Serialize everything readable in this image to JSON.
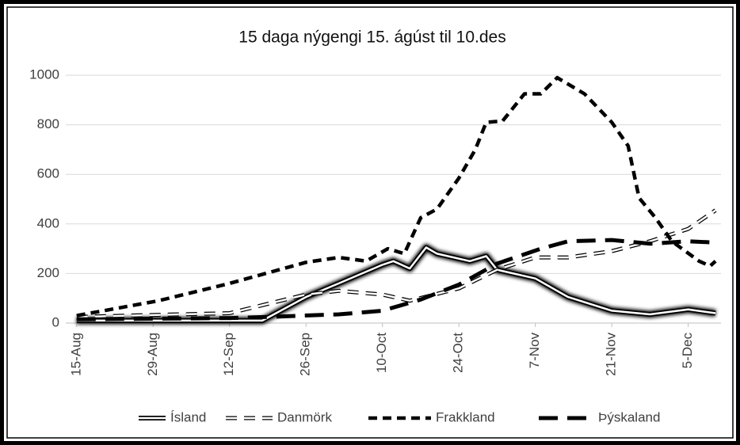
{
  "chart_data": {
    "type": "line",
    "title": "15 daga nýgengi 15. ágúst til 10.des",
    "xlim": [
      -2,
      118
    ],
    "ylim": [
      0,
      1000
    ],
    "grid": true,
    "legend": "bottom",
    "xticks": [
      {
        "value": 0,
        "label": "15-Aug"
      },
      {
        "value": 14,
        "label": "29-Aug"
      },
      {
        "value": 28,
        "label": "12-Sep"
      },
      {
        "value": 42,
        "label": "26-Sep"
      },
      {
        "value": 56,
        "label": "10-Oct"
      },
      {
        "value": 70,
        "label": "24-Oct"
      },
      {
        "value": 84,
        "label": "7-Nov"
      },
      {
        "value": 98,
        "label": "21-Nov"
      },
      {
        "value": 112,
        "label": "5-Dec"
      }
    ],
    "yticks": [
      0,
      200,
      400,
      600,
      800,
      1000
    ],
    "series": [
      {
        "name": "Ísland",
        "color": "#ffffff",
        "style": "glow",
        "x": [
          0,
          15,
          28,
          34,
          42,
          48,
          56,
          58,
          61,
          64,
          66,
          72,
          75,
          77,
          84,
          90,
          98,
          105,
          112,
          117
        ],
        "values": [
          10,
          10,
          10,
          10,
          105,
          160,
          235,
          250,
          220,
          305,
          280,
          250,
          270,
          215,
          180,
          105,
          50,
          35,
          55,
          40
        ]
      },
      {
        "name": "Danmörk",
        "color": "#ffffff",
        "style": "outline",
        "x": [
          0,
          28,
          42,
          48,
          56,
          61,
          70,
          77,
          84,
          90,
          98,
          105,
          112,
          117
        ],
        "values": [
          25,
          40,
          115,
          130,
          115,
          90,
          140,
          215,
          265,
          265,
          290,
          330,
          380,
          455
        ]
      },
      {
        "name": "Frakkland",
        "color": "#000000",
        "style": "short-dash",
        "x": [
          0,
          15,
          28,
          42,
          48,
          53,
          57,
          60,
          63,
          66,
          70,
          73,
          75,
          78,
          82,
          85,
          88,
          93,
          98,
          101,
          103,
          106,
          109,
          114,
          116,
          117
        ],
        "values": [
          30,
          90,
          160,
          245,
          265,
          250,
          300,
          280,
          425,
          460,
          585,
          700,
          810,
          815,
          925,
          925,
          990,
          925,
          810,
          715,
          505,
          425,
          330,
          250,
          230,
          250
        ]
      },
      {
        "name": "Þýskaland",
        "color": "#000000",
        "style": "long-dash",
        "x": [
          0,
          28,
          35,
          48,
          56,
          63,
          70,
          77,
          85,
          90,
          98,
          105,
          112,
          117
        ],
        "values": [
          15,
          20,
          25,
          35,
          50,
          95,
          155,
          240,
          300,
          330,
          335,
          320,
          330,
          325
        ]
      }
    ]
  }
}
